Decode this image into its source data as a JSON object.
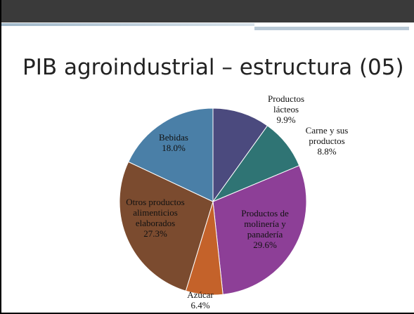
{
  "chart_data": {
    "type": "pie",
    "title": "PIB agroindustrial – estructura (05)",
    "categories": [
      "Productos lácteos",
      "Carne y sus productos",
      "Productos de molinería y panadería",
      "Azúcar",
      "Otros productos alimenticios elaborados",
      "Bebidas"
    ],
    "values": [
      9.9,
      8.8,
      29.6,
      6.4,
      27.3,
      18.0
    ],
    "value_labels": [
      "9.9%",
      "8.8%",
      "29.6%",
      "6.4%",
      "27.3%",
      "18.0%"
    ],
    "colors": [
      "#4b4a7e",
      "#2f7474",
      "#8d3f97",
      "#c4622a",
      "#7b4b2f",
      "#4a7fa7"
    ]
  }
}
